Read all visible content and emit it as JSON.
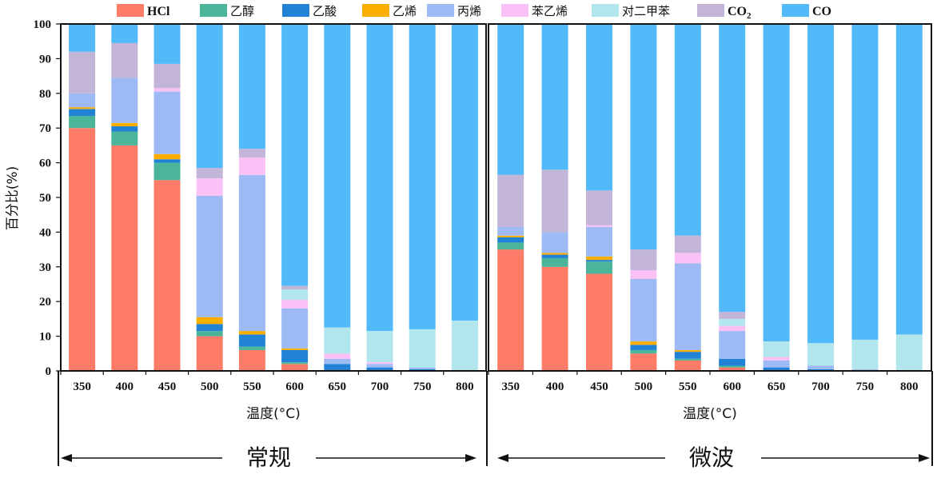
{
  "chart_data": {
    "type": "bar",
    "stacked": true,
    "ylabel": "百分比(%)",
    "xlabel": "温度(°C)",
    "ylim": [
      0,
      100
    ],
    "yticks": [
      0,
      10,
      20,
      30,
      40,
      50,
      60,
      70,
      80,
      90,
      100
    ],
    "categories": [
      "350",
      "400",
      "450",
      "500",
      "550",
      "600",
      "650",
      "700",
      "750",
      "800"
    ],
    "colors": [
      "#fd7b67",
      "#4bb59a",
      "#2282d6",
      "#fbad00",
      "#9dbaf5",
      "#fbc1f7",
      "#b1e6ec",
      "#c3b5d7",
      "#52baf9"
    ],
    "legend": [
      {
        "label": "HCl",
        "bold": true
      },
      {
        "label": "乙醇"
      },
      {
        "label": "乙酸"
      },
      {
        "label": "乙烯"
      },
      {
        "label": "丙烯"
      },
      {
        "label": "苯乙烯"
      },
      {
        "label": "对二甲苯"
      },
      {
        "label": "CO",
        "sub": "2",
        "bold": true
      },
      {
        "label": "CO",
        "bold": true
      }
    ],
    "panels": [
      {
        "name": "常规",
        "series": [
          {
            "name": "HCl",
            "values": [
              70,
              65,
              55,
              10,
              6,
              2,
              0,
              0,
              0,
              0
            ]
          },
          {
            "name": "乙醇",
            "values": [
              3.5,
              4,
              5,
              1.5,
              1,
              0.5,
              0,
              0,
              0,
              0
            ]
          },
          {
            "name": "乙酸",
            "values": [
              2,
              1.5,
              1,
              2,
              3.5,
              3.5,
              2,
              1,
              0.5,
              0
            ]
          },
          {
            "name": "乙烯",
            "values": [
              0.5,
              1,
              1.5,
              2,
              1,
              0.5,
              0,
              0,
              0,
              0
            ]
          },
          {
            "name": "丙烯",
            "values": [
              4,
              13,
              18,
              35,
              45,
              11.5,
              1.5,
              1,
              0.5,
              0
            ]
          },
          {
            "name": "苯乙烯",
            "values": [
              0,
              0,
              1,
              5,
              5,
              2.5,
              1.5,
              0.5,
              0,
              0
            ]
          },
          {
            "name": "对二甲苯",
            "values": [
              0,
              0,
              0,
              0,
              0,
              3,
              7.5,
              9,
              11,
              14.5
            ]
          },
          {
            "name": "CO2",
            "values": [
              12,
              10,
              7,
              3,
              2.5,
              1,
              0,
              0,
              0,
              0
            ]
          },
          {
            "name": "CO",
            "values": [
              8,
              5.5,
              11.5,
              41.5,
              36,
              75.5,
              87.5,
              88.5,
              88,
              85.5
            ]
          }
        ]
      },
      {
        "name": "微波",
        "series": [
          {
            "name": "HCl",
            "values": [
              35,
              30,
              28,
              5,
              3,
              1,
              0,
              0,
              0,
              0
            ]
          },
          {
            "name": "乙醇",
            "values": [
              2,
              2.5,
              3.5,
              1,
              0.5,
              0.5,
              0,
              0,
              0,
              0
            ]
          },
          {
            "name": "乙酸",
            "values": [
              1.5,
              1,
              0.5,
              1.5,
              2,
              2,
              1,
              0.5,
              0,
              0
            ]
          },
          {
            "name": "乙烯",
            "values": [
              0.5,
              0.5,
              1,
              1,
              0.5,
              0,
              0,
              0,
              0,
              0
            ]
          },
          {
            "name": "丙烯",
            "values": [
              2.5,
              6,
              8.5,
              18,
              25,
              8,
              2,
              1,
              0.5,
              0
            ]
          },
          {
            "name": "苯乙烯",
            "values": [
              0,
              0,
              0.5,
              2.5,
              3,
              1.5,
              1,
              0,
              0,
              0
            ]
          },
          {
            "name": "对二甲苯",
            "values": [
              0,
              0,
              0,
              0,
              0,
              2,
              4.5,
              6.5,
              8.5,
              10.5
            ]
          },
          {
            "name": "CO2",
            "values": [
              15,
              18,
              10,
              6,
              5,
              2,
              0,
              0,
              0,
              0
            ]
          },
          {
            "name": "CO",
            "values": [
              43.5,
              42,
              48,
              65,
              61,
              83,
              91.5,
              92,
              91,
              89.5
            ]
          }
        ]
      }
    ]
  }
}
